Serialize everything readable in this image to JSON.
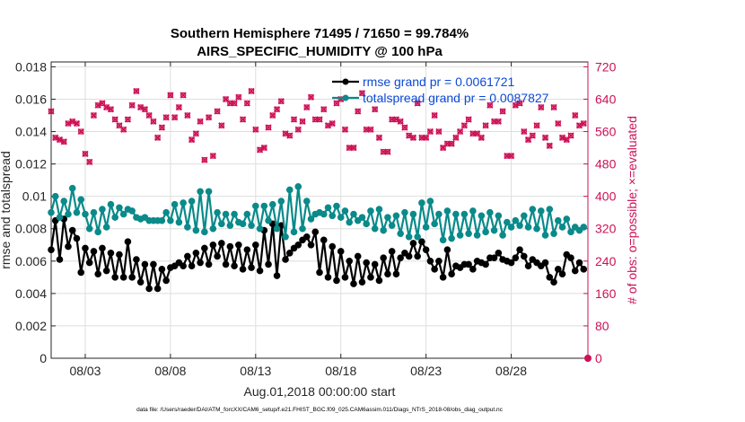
{
  "chart_data": {
    "type": "line",
    "title": "Southern Hemisphere 71495 / 71650 = 99.784%",
    "subtitle": "AIRS_SPECIFIC_HUMIDITY @ 100 hPa",
    "xlabel": "Aug.01,2018 00:00:00 start",
    "ylabel_left": "rmse and totalspread",
    "ylabel_right": "# of obs: o=possible; ×=evaluated",
    "xlim": [
      1,
      32.5
    ],
    "ylim_left": [
      0,
      0.0183
    ],
    "ylim_right": [
      0,
      732
    ],
    "x_ticks": [
      3,
      8,
      13,
      18,
      23,
      28
    ],
    "x_tick_labels": [
      "08/03",
      "08/08",
      "08/13",
      "08/18",
      "08/23",
      "08/28"
    ],
    "y_ticks_left": [
      0,
      0.002,
      0.004,
      0.006,
      0.008,
      0.01,
      0.012,
      0.014,
      0.016,
      0.018
    ],
    "y_tick_labels_left": [
      "0",
      "0.002",
      "0.004",
      "0.006",
      "0.008",
      "0.01",
      "0.012",
      "0.014",
      "0.016",
      "0.018"
    ],
    "y_ticks_right": [
      0,
      80,
      160,
      240,
      320,
      400,
      480,
      560,
      640,
      720
    ],
    "y_tick_labels_right": [
      "0",
      "80",
      "160",
      "240",
      "320",
      "400",
      "480",
      "560",
      "640",
      "720"
    ],
    "grid": true,
    "legend_position": "top-right",
    "x_start": 1.0,
    "x_step": 0.25,
    "series": [
      {
        "name": "rmse grand pr = 0.0061721",
        "color": "#000000",
        "axis": "left",
        "values": [
          0.0067,
          0.0085,
          0.0061,
          0.0086,
          0.0069,
          0.0079,
          0.0074,
          0.0053,
          0.0068,
          0.0059,
          0.0066,
          0.0052,
          0.0068,
          0.0054,
          0.0065,
          0.005,
          0.0064,
          0.005,
          0.0072,
          0.005,
          0.0061,
          0.0047,
          0.0058,
          0.0043,
          0.0058,
          0.0043,
          0.0055,
          0.0048,
          0.0056,
          0.0057,
          0.0059,
          0.0057,
          0.0063,
          0.0057,
          0.0065,
          0.0059,
          0.0068,
          0.0058,
          0.007,
          0.0063,
          0.0071,
          0.0058,
          0.0069,
          0.0057,
          0.007,
          0.0055,
          0.0067,
          0.0056,
          0.007,
          0.0054,
          0.0079,
          0.0058,
          0.0083,
          0.0051,
          0.0082,
          0.0061,
          0.0065,
          0.0068,
          0.007,
          0.0073,
          0.0075,
          0.007,
          0.0078,
          0.0053,
          0.0073,
          0.005,
          0.0069,
          0.0048,
          0.0066,
          0.005,
          0.006,
          0.0046,
          0.0063,
          0.0047,
          0.0059,
          0.005,
          0.0058,
          0.0048,
          0.0062,
          0.0052,
          0.0066,
          0.0052,
          0.0062,
          0.0065,
          0.0063,
          0.0071,
          0.0063,
          0.0072,
          0.0067,
          0.006,
          0.0055,
          0.006,
          0.005,
          0.0067,
          0.0052,
          0.0057,
          0.0056,
          0.0058,
          0.0058,
          0.0055,
          0.006,
          0.0059,
          0.0058,
          0.0062,
          0.0062,
          0.0065,
          0.0061,
          0.006,
          0.0059,
          0.0062,
          0.0067,
          0.0063,
          0.0057,
          0.0061,
          0.0059,
          0.0057,
          0.0059,
          0.005,
          0.0047,
          0.0055,
          0.0052,
          0.0064,
          0.0062,
          0.0054,
          0.0059,
          0.0055
        ]
      },
      {
        "name": "totalspread grand pr = 0.0087827",
        "color": "#0a8a8a",
        "axis": "left",
        "values": [
          0.009,
          0.01,
          0.0087,
          0.0097,
          0.0089,
          0.0105,
          0.009,
          0.0098,
          0.0089,
          0.008,
          0.009,
          0.0078,
          0.0092,
          0.0081,
          0.0095,
          0.0087,
          0.0093,
          0.0089,
          0.0092,
          0.0091,
          0.0087,
          0.0086,
          0.0087,
          0.0085,
          0.0085,
          0.0085,
          0.0085,
          0.009,
          0.0085,
          0.0095,
          0.0084,
          0.0096,
          0.0081,
          0.0097,
          0.0079,
          0.0103,
          0.0078,
          0.0103,
          0.008,
          0.009,
          0.0083,
          0.0089,
          0.0082,
          0.0089,
          0.0084,
          0.0083,
          0.0089,
          0.0082,
          0.0094,
          0.008,
          0.0094,
          0.0085,
          0.0095,
          0.008,
          0.0097,
          0.0075,
          0.0104,
          0.0078,
          0.0106,
          0.008,
          0.0097,
          0.0086,
          0.0089,
          0.009,
          0.0089,
          0.0093,
          0.0088,
          0.0094,
          0.0087,
          0.0091,
          0.0084,
          0.0089,
          0.0085,
          0.0087,
          0.0083,
          0.0091,
          0.008,
          0.0092,
          0.0079,
          0.0087,
          0.0082,
          0.0088,
          0.0077,
          0.009,
          0.0075,
          0.0089,
          0.0075,
          0.0096,
          0.0081,
          0.0097,
          0.0083,
          0.0089,
          0.0073,
          0.0091,
          0.0074,
          0.0089,
          0.0076,
          0.0089,
          0.0077,
          0.0091,
          0.0076,
          0.0088,
          0.0078,
          0.009,
          0.0079,
          0.0088,
          0.0076,
          0.0084,
          0.0081,
          0.0085,
          0.0082,
          0.0088,
          0.0081,
          0.0092,
          0.008,
          0.0091,
          0.0076,
          0.0092,
          0.0077,
          0.0085,
          0.0081,
          0.0086,
          0.0078,
          0.0081,
          0.0079,
          0.0081
        ]
      }
    ],
    "obs": {
      "name": "# of obs",
      "color": "#cc1155",
      "axis": "right",
      "values": [
        610,
        545,
        540,
        535,
        580,
        585,
        580,
        560,
        505,
        485,
        600,
        625,
        630,
        620,
        615,
        590,
        575,
        565,
        590,
        625,
        660,
        620,
        615,
        600,
        585,
        545,
        570,
        595,
        650,
        595,
        620,
        650,
        600,
        540,
        555,
        585,
        490,
        595,
        500,
        610,
        575,
        640,
        630,
        630,
        645,
        590,
        630,
        660,
        565,
        515,
        520,
        570,
        600,
        615,
        635,
        555,
        550,
        590,
        565,
        585,
        620,
        645,
        590,
        590,
        615,
        575,
        580,
        630,
        640,
        565,
        520,
        520,
        610,
        655,
        565,
        565,
        615,
        545,
        510,
        510,
        590,
        590,
        585,
        570,
        550,
        545,
        630,
        545,
        545,
        560,
        600,
        560,
        520,
        530,
        530,
        545,
        560,
        575,
        590,
        555,
        555,
        545,
        575,
        625,
        585,
        585,
        610,
        500,
        500,
        625,
        630,
        560,
        540,
        550,
        575,
        620,
        545,
        525,
        620,
        580,
        545,
        540,
        550,
        600,
        575,
        580
      ]
    }
  },
  "footer": {
    "data_file": "data file: /Users/raeder/DAI/ATM_forcXX/CAM6_setup/f.e21.FHIST_BGC.f09_025.CAM6assim.011/Diags_NTrS_2018-08/obs_diag_output.nc"
  }
}
